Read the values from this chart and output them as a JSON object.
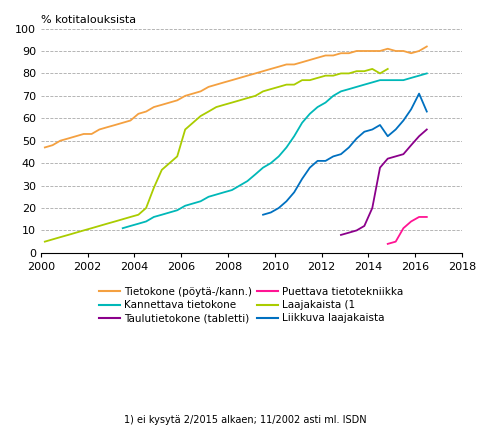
{
  "title": "% kotitalouksista",
  "footnote": "1) ei kysytä 2/2015 alkaen; 11/2002 asti ml. ISDN",
  "xlim": [
    2000,
    2018
  ],
  "ylim": [
    0,
    100
  ],
  "yticks": [
    0,
    10,
    20,
    30,
    40,
    50,
    60,
    70,
    80,
    90,
    100
  ],
  "xticks": [
    2000,
    2002,
    2004,
    2006,
    2008,
    2010,
    2012,
    2014,
    2016,
    2018
  ],
  "series": {
    "Tietokone (pöytä-/kann.)": {
      "color": "#F4A040",
      "x": [
        2000.17,
        2000.5,
        2000.83,
        2001.17,
        2001.5,
        2001.83,
        2002.17,
        2002.5,
        2002.83,
        2003.17,
        2003.5,
        2003.83,
        2004.17,
        2004.5,
        2004.83,
        2005.17,
        2005.5,
        2005.83,
        2006.17,
        2006.5,
        2006.83,
        2007.17,
        2007.5,
        2007.83,
        2008.17,
        2008.5,
        2008.83,
        2009.17,
        2009.5,
        2009.83,
        2010.17,
        2010.5,
        2010.83,
        2011.17,
        2011.5,
        2011.83,
        2012.17,
        2012.5,
        2012.83,
        2013.17,
        2013.5,
        2013.83,
        2014.17,
        2014.5,
        2014.83,
        2015.17,
        2015.5,
        2015.83,
        2016.17,
        2016.5
      ],
      "y": [
        47,
        48,
        50,
        51,
        52,
        53,
        53,
        55,
        56,
        57,
        58,
        59,
        62,
        63,
        65,
        66,
        67,
        68,
        70,
        71,
        72,
        74,
        75,
        76,
        77,
        78,
        79,
        80,
        81,
        82,
        83,
        84,
        84,
        85,
        86,
        87,
        88,
        88,
        89,
        89,
        90,
        90,
        90,
        90,
        91,
        90,
        90,
        89,
        90,
        92
      ]
    },
    "Kannettava tietokone": {
      "color": "#00B8B8",
      "x": [
        2003.5,
        2003.83,
        2004.17,
        2004.5,
        2004.83,
        2005.17,
        2005.5,
        2005.83,
        2006.17,
        2006.5,
        2006.83,
        2007.17,
        2007.5,
        2007.83,
        2008.17,
        2008.5,
        2008.83,
        2009.17,
        2009.5,
        2009.83,
        2010.17,
        2010.5,
        2010.83,
        2011.17,
        2011.5,
        2011.83,
        2012.17,
        2012.5,
        2012.83,
        2013.17,
        2013.5,
        2013.83,
        2014.17,
        2014.5,
        2014.83,
        2015.17,
        2015.5,
        2015.83,
        2016.17,
        2016.5
      ],
      "y": [
        11,
        12,
        13,
        14,
        16,
        17,
        18,
        19,
        21,
        22,
        23,
        25,
        26,
        27,
        28,
        30,
        32,
        35,
        38,
        40,
        43,
        47,
        52,
        58,
        62,
        65,
        67,
        70,
        72,
        73,
        74,
        75,
        76,
        77,
        77,
        77,
        77,
        78,
        79,
        80
      ]
    },
    "Taulutietokone (tabletti)": {
      "color": "#8B008B",
      "x": [
        2012.83,
        2013.17,
        2013.5,
        2013.83,
        2014.17,
        2014.5,
        2014.83,
        2015.5,
        2015.83,
        2016.17,
        2016.5
      ],
      "y": [
        8,
        9,
        10,
        12,
        20,
        38,
        42,
        44,
        48,
        52,
        55
      ]
    },
    "Puettava tietotekniikka": {
      "color": "#FF1493",
      "x": [
        2014.83,
        2015.17,
        2015.5,
        2015.83,
        2016.17,
        2016.5
      ],
      "y": [
        4,
        5,
        11,
        14,
        16,
        16
      ]
    },
    "Laajakaista (1": {
      "color": "#AACC00",
      "x": [
        2000.17,
        2000.5,
        2000.83,
        2001.17,
        2001.5,
        2001.83,
        2002.17,
        2002.5,
        2002.83,
        2003.17,
        2003.5,
        2003.83,
        2004.17,
        2004.5,
        2004.83,
        2005.17,
        2005.5,
        2005.83,
        2006.17,
        2006.5,
        2006.83,
        2007.17,
        2007.5,
        2007.83,
        2008.17,
        2008.5,
        2008.83,
        2009.17,
        2009.5,
        2009.83,
        2010.17,
        2010.5,
        2010.83,
        2011.17,
        2011.5,
        2011.83,
        2012.17,
        2012.5,
        2012.83,
        2013.17,
        2013.5,
        2013.83,
        2014.17,
        2014.5,
        2014.83
      ],
      "y": [
        5,
        6,
        7,
        8,
        9,
        10,
        11,
        12,
        13,
        14,
        15,
        16,
        17,
        20,
        29,
        37,
        40,
        43,
        55,
        58,
        61,
        63,
        65,
        66,
        67,
        68,
        69,
        70,
        72,
        73,
        74,
        75,
        75,
        77,
        77,
        78,
        79,
        79,
        80,
        80,
        81,
        81,
        82,
        80,
        82
      ]
    },
    "Liikkuva laajakaista": {
      "color": "#0070C0",
      "x": [
        2009.5,
        2009.83,
        2010.17,
        2010.5,
        2010.83,
        2011.17,
        2011.5,
        2011.83,
        2012.17,
        2012.5,
        2012.83,
        2013.17,
        2013.5,
        2013.83,
        2014.17,
        2014.5,
        2014.83,
        2015.17,
        2015.5,
        2015.83,
        2016.17,
        2016.5
      ],
      "y": [
        17,
        18,
        20,
        23,
        27,
        33,
        38,
        41,
        41,
        43,
        44,
        47,
        51,
        54,
        55,
        57,
        52,
        55,
        59,
        64,
        71,
        63
      ]
    }
  },
  "legend_order": [
    [
      "Tietokone (pöytä-/kann.)",
      "#F4A040"
    ],
    [
      "Kannettava tietokone",
      "#00B8B8"
    ],
    [
      "Taulutietokone (tabletti)",
      "#8B008B"
    ],
    [
      "Puettava tietotekniikka",
      "#FF1493"
    ],
    [
      "Laajakaista (1",
      "#AACC00"
    ],
    [
      "Liikkuva laajakaista",
      "#0070C0"
    ]
  ]
}
